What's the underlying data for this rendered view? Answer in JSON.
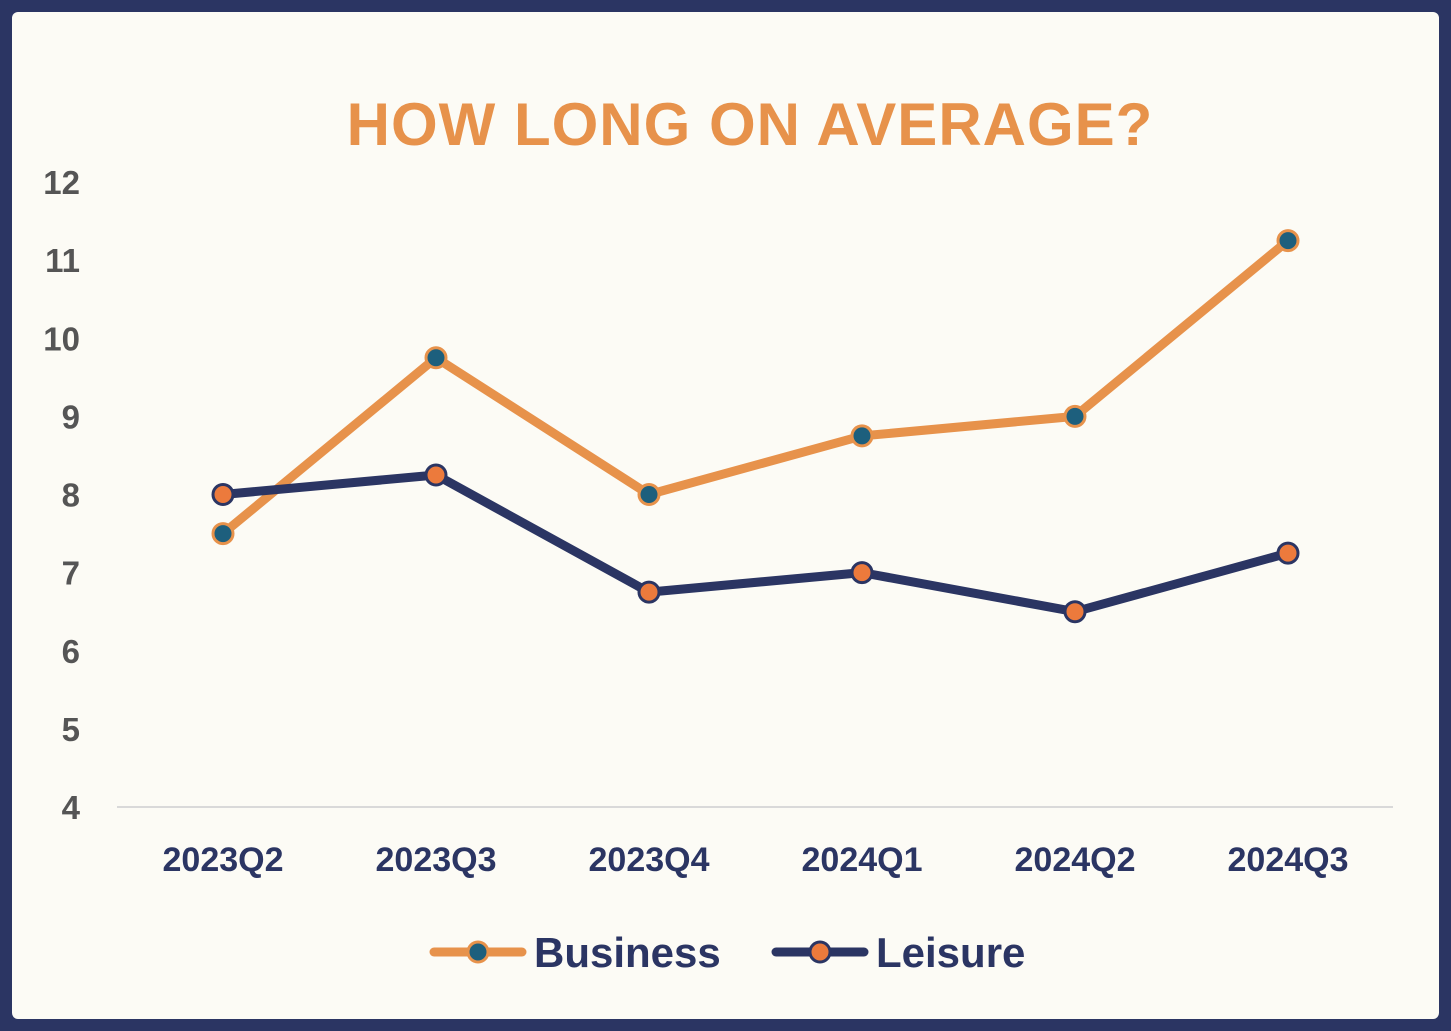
{
  "chart_data": {
    "type": "line",
    "title": "HOW LONG ON AVERAGE?",
    "xlabel": "",
    "ylabel": "",
    "categories": [
      "2023Q2",
      "2023Q3",
      "2023Q4",
      "2024Q1",
      "2024Q2",
      "2024Q3"
    ],
    "yticks": [
      "4",
      "5",
      "6",
      "7",
      "8",
      "9",
      "10",
      "11",
      "12"
    ],
    "ylim": [
      4,
      12
    ],
    "grid": false,
    "legend_position": "bottom-center",
    "series": [
      {
        "name": "Business",
        "values": [
          7.5,
          9.75,
          8.0,
          8.75,
          9.0,
          11.25
        ],
        "line_color": "#e7924b",
        "marker_fill": "#1d5f7d",
        "marker_stroke": "#e7924b"
      },
      {
        "name": "Leisure",
        "values": [
          8.0,
          8.25,
          6.75,
          7.0,
          6.5,
          7.25
        ],
        "line_color": "#2b3563",
        "marker_fill": "#ec7a3c",
        "marker_stroke": "#2b3563"
      }
    ]
  },
  "colors": {
    "frame": "#2b3563",
    "background": "#fcfbf5",
    "title": "#e7924b",
    "axis_line": "#d9d9d9",
    "ytick": "#555555",
    "xtick": "#2b3563"
  }
}
